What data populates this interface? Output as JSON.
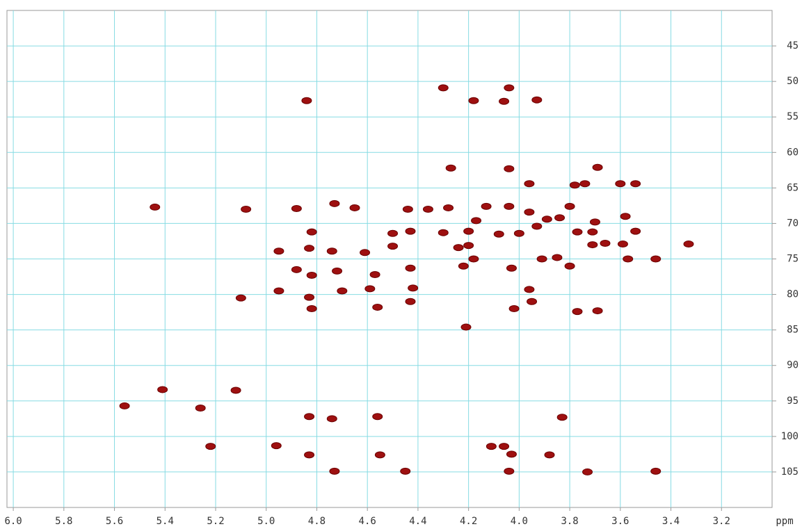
{
  "chart_data": {
    "type": "scatter",
    "xlabel": "ppm",
    "color": "#9e1010",
    "grid": true,
    "xlim": [
      6.025,
      3.0
    ],
    "ylim": [
      40,
      110
    ],
    "xticks": [
      {
        "value": 6.0,
        "label": "6.0"
      },
      5.8,
      5.6,
      5.4,
      5.2,
      {
        "value": 5.0,
        "label": "5.0"
      },
      4.8,
      4.6,
      4.4,
      4.2,
      {
        "value": 4.0,
        "label": "4.0"
      },
      3.8,
      3.6,
      3.4,
      3.2
    ],
    "yticks": [
      45,
      50,
      55,
      60,
      65,
      70,
      75,
      80,
      85,
      90,
      95,
      100,
      105
    ],
    "x": [
      4.84,
      4.18,
      4.06,
      3.93,
      4.3,
      4.04,
      4.27,
      4.04,
      3.96,
      3.69,
      3.78,
      3.74,
      3.6,
      3.54,
      5.44,
      5.08,
      4.88,
      4.73,
      4.65,
      4.44,
      4.36,
      4.28,
      4.13,
      4.04,
      3.96,
      3.8,
      3.84,
      3.89,
      3.7,
      3.58,
      3.54,
      3.93,
      3.77,
      3.71,
      4.82,
      4.5,
      4.43,
      4.3,
      4.2,
      4.08,
      4.0,
      4.17,
      4.95,
      4.83,
      4.74,
      4.61,
      4.5,
      4.24,
      4.2,
      3.71,
      3.66,
      3.59,
      3.33,
      4.18,
      4.22,
      3.91,
      3.85,
      3.8,
      3.57,
      3.46,
      4.88,
      4.82,
      4.72,
      4.57,
      4.43,
      4.03,
      4.95,
      5.1,
      4.83,
      4.7,
      4.59,
      4.42,
      4.43,
      4.82,
      4.56,
      4.02,
      3.96,
      3.95,
      3.77,
      3.69,
      4.21,
      5.41,
      5.12,
      5.56,
      5.26,
      4.83,
      4.74,
      4.56,
      3.83,
      5.22,
      4.96,
      4.83,
      4.55,
      4.11,
      4.06,
      4.03,
      3.88,
      4.73,
      4.45,
      4.04,
      3.73,
      3.46
    ],
    "values": [
      52.7,
      52.7,
      52.8,
      52.6,
      50.9,
      50.9,
      62.2,
      62.3,
      64.4,
      62.1,
      64.6,
      64.4,
      64.4,
      64.4,
      67.7,
      68.0,
      67.9,
      67.2,
      67.8,
      68.0,
      68.0,
      67.8,
      67.6,
      67.6,
      68.4,
      67.6,
      69.2,
      69.4,
      69.8,
      69.0,
      71.1,
      70.4,
      71.2,
      71.2,
      71.2,
      71.4,
      71.1,
      71.3,
      71.1,
      71.5,
      71.4,
      69.6,
      73.9,
      73.5,
      73.9,
      74.1,
      73.2,
      73.4,
      73.1,
      73.0,
      72.8,
      72.9,
      72.9,
      75.0,
      76.0,
      75.0,
      74.8,
      76.0,
      75.0,
      75.0,
      76.5,
      77.3,
      76.7,
      77.2,
      76.3,
      76.3,
      79.5,
      80.5,
      80.4,
      79.5,
      79.2,
      79.1,
      81.0,
      82.0,
      81.8,
      82.0,
      79.3,
      81.0,
      82.4,
      82.3,
      84.6,
      93.4,
      93.5,
      95.7,
      96.0,
      97.2,
      97.5,
      97.2,
      97.3,
      101.4,
      101.3,
      102.6,
      102.6,
      101.4,
      101.4,
      102.5,
      102.6,
      104.9,
      104.9,
      104.9,
      105.0,
      104.9
    ]
  }
}
